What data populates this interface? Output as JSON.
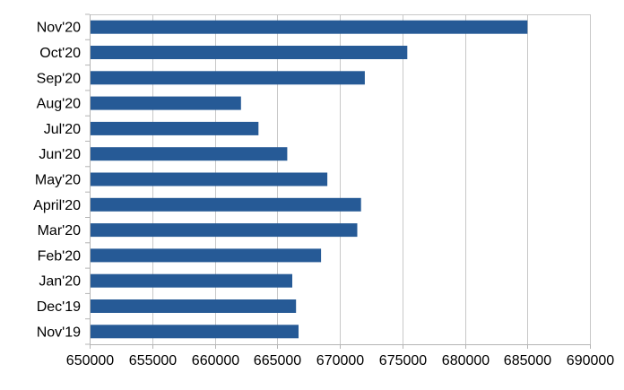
{
  "chart_data": {
    "type": "bar",
    "orientation": "horizontal",
    "categories": [
      "Nov'20",
      "Oct'20",
      "Sep'20",
      "Aug'20",
      "Jul'20",
      "Jun'20",
      "May'20",
      "April'20",
      "Mar'20",
      "Feb'20",
      "Jan'20",
      "Dec'19",
      "Nov'19"
    ],
    "values": [
      685000,
      675400,
      672000,
      662100,
      663500,
      665800,
      669000,
      671700,
      671400,
      668500,
      666200,
      666500,
      666700
    ],
    "xlim": [
      650000,
      690000
    ],
    "xticks": [
      650000,
      655000,
      660000,
      665000,
      670000,
      675000,
      680000,
      685000,
      690000
    ],
    "grid": true,
    "legend": "none",
    "bar_color": "#265a96"
  }
}
